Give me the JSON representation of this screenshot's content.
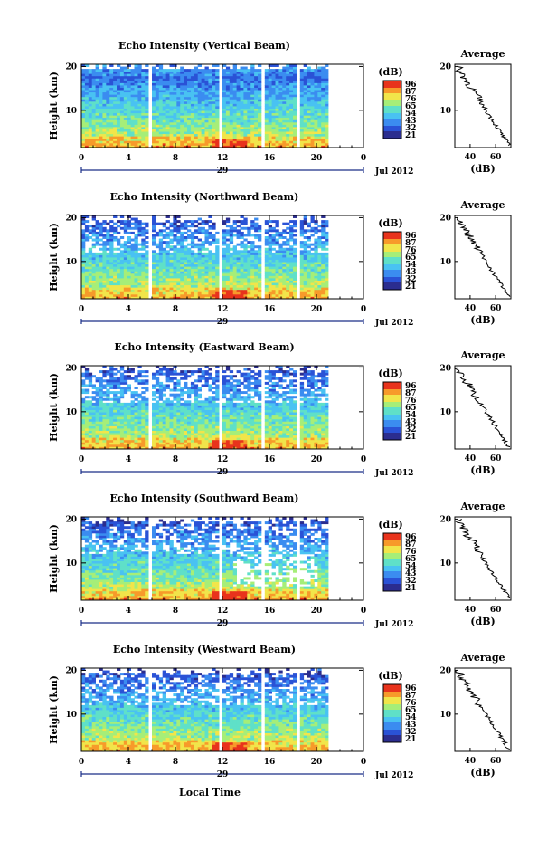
{
  "chart_data": [
    {
      "type": "heatmap",
      "title": "Echo Intensity (Vertical Beam)",
      "ylabel": "Height (km)",
      "xticks": [
        "0",
        "4",
        "8",
        "12",
        "16",
        "20",
        "0"
      ],
      "yticks": [
        "20",
        "10"
      ],
      "date_label": "29",
      "month_label": "Jul 2012",
      "unit": "(dB)",
      "colorbar_ticks": [
        "96",
        "87",
        "76",
        "65",
        "54",
        "43",
        "32",
        "21"
      ],
      "gaps_hours": [
        [
          5.8,
          6.1
        ],
        [
          11.8,
          12.1
        ],
        [
          15.3,
          15.6
        ],
        [
          18.3,
          18.6
        ],
        [
          20.9,
          24
        ]
      ],
      "avg_title": "Average",
      "avg_xticks": [
        "40",
        "60"
      ],
      "avg_yticks": [
        "20",
        "10"
      ],
      "avg_xlabel": "(dB)"
    },
    {
      "type": "heatmap",
      "title": "Echo Intensity (Northward Beam)",
      "ylabel": "Height (km)",
      "xticks": [
        "0",
        "4",
        "8",
        "12",
        "16",
        "20",
        "0"
      ],
      "yticks": [
        "20",
        "10"
      ],
      "date_label": "29",
      "month_label": "Jul 2012",
      "unit": "(dB)",
      "colorbar_ticks": [
        "96",
        "87",
        "76",
        "65",
        "54",
        "43",
        "32",
        "21"
      ],
      "gaps_hours": [
        [
          5.8,
          6.1
        ],
        [
          11.8,
          12.1
        ],
        [
          15.3,
          15.6
        ],
        [
          18.3,
          18.6
        ],
        [
          20.9,
          24
        ]
      ],
      "avg_title": "Average",
      "avg_xticks": [
        "40",
        "60"
      ],
      "avg_yticks": [
        "20",
        "10"
      ],
      "avg_xlabel": "(dB)"
    },
    {
      "type": "heatmap",
      "title": "Echo Intensity (Eastward Beam)",
      "ylabel": "Height (km)",
      "xticks": [
        "0",
        "4",
        "8",
        "12",
        "16",
        "20",
        "0"
      ],
      "yticks": [
        "20",
        "10"
      ],
      "date_label": "29",
      "month_label": "Jul 2012",
      "unit": "(dB)",
      "colorbar_ticks": [
        "96",
        "87",
        "76",
        "65",
        "54",
        "43",
        "32",
        "21"
      ],
      "gaps_hours": [
        [
          5.8,
          6.1
        ],
        [
          11.8,
          12.1
        ],
        [
          15.3,
          15.6
        ],
        [
          18.3,
          18.6
        ],
        [
          20.9,
          24
        ]
      ],
      "avg_title": "Average",
      "avg_xticks": [
        "40",
        "60"
      ],
      "avg_yticks": [
        "20",
        "10"
      ],
      "avg_xlabel": "(dB)"
    },
    {
      "type": "heatmap",
      "title": "Echo Intensity (Southward Beam)",
      "ylabel": "Height (km)",
      "xticks": [
        "0",
        "4",
        "8",
        "12",
        "16",
        "20",
        "0"
      ],
      "yticks": [
        "20",
        "10"
      ],
      "date_label": "29",
      "month_label": "Jul 2012",
      "unit": "(dB)",
      "colorbar_ticks": [
        "96",
        "87",
        "76",
        "65",
        "54",
        "43",
        "32",
        "21"
      ],
      "gaps_hours": [
        [
          5.8,
          6.1
        ],
        [
          11.8,
          12.1
        ],
        [
          15.3,
          15.6
        ],
        [
          18.3,
          18.6
        ],
        [
          20.9,
          24
        ]
      ],
      "avg_title": "Average",
      "avg_xticks": [
        "40",
        "60"
      ],
      "avg_yticks": [
        "20",
        "10"
      ],
      "avg_xlabel": "(dB)"
    },
    {
      "type": "heatmap",
      "title": "Echo Intensity (Westward Beam)",
      "ylabel": "Height (km)",
      "xticks": [
        "0",
        "4",
        "8",
        "12",
        "16",
        "20",
        "0"
      ],
      "yticks": [
        "20",
        "10"
      ],
      "date_label": "29",
      "month_label": "Jul 2012",
      "unit": "(dB)",
      "colorbar_ticks": [
        "96",
        "87",
        "76",
        "65",
        "54",
        "43",
        "32",
        "21"
      ],
      "gaps_hours": [
        [
          5.8,
          6.1
        ],
        [
          11.8,
          12.1
        ],
        [
          15.3,
          15.6
        ],
        [
          18.3,
          18.6
        ],
        [
          20.9,
          24
        ]
      ],
      "avg_title": "Average",
      "avg_xticks": [
        "40",
        "60"
      ],
      "avg_yticks": [
        "20",
        "10"
      ],
      "avg_xlabel": "(dB)"
    }
  ],
  "xlabel": "Local Time",
  "colors": {
    "colormap": [
      "#2b2d8f",
      "#2a52d6",
      "#3b8cf0",
      "#49c2f2",
      "#5fe0c8",
      "#a6ee78",
      "#f1e54a",
      "#f79a2a",
      "#e8331c"
    ]
  }
}
